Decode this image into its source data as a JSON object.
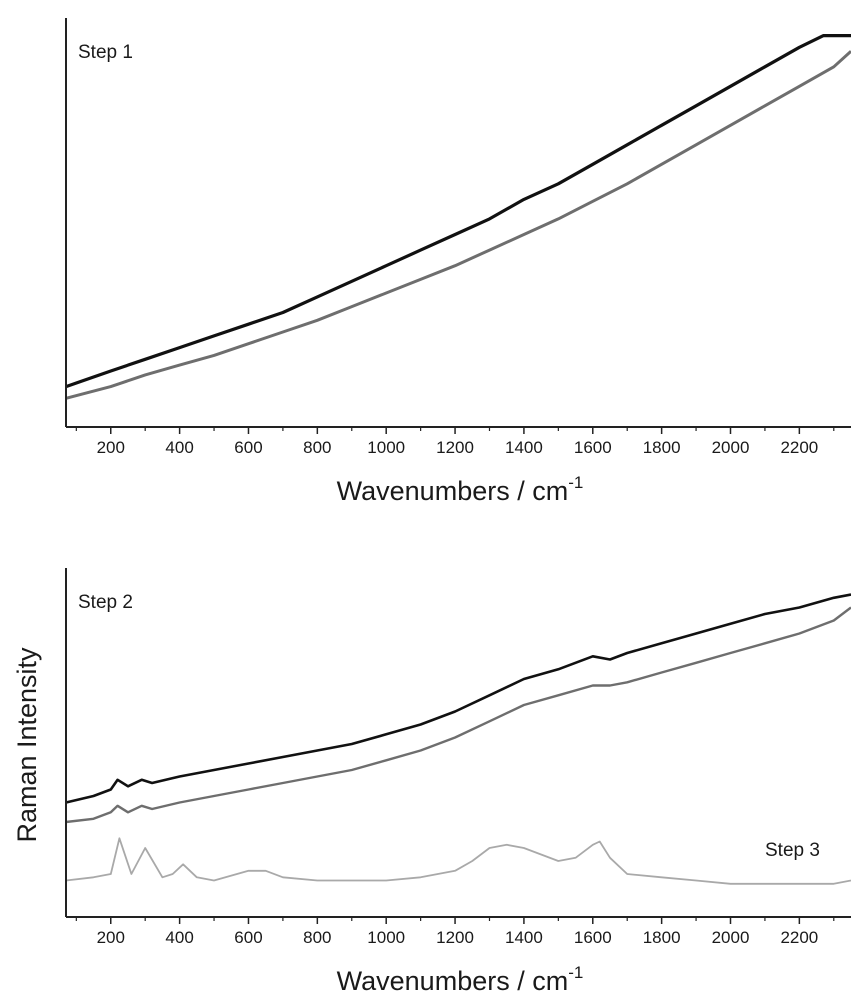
{
  "ylabel": "Raman Intensity",
  "chart_data": [
    {
      "type": "line",
      "annotation": "Step 1",
      "xlabel": "Wavenumbers / cm",
      "xlabel_superscript": "-1",
      "xlim": [
        70,
        2350
      ],
      "ylim": [
        0,
        100
      ],
      "xticks": [
        200,
        400,
        600,
        800,
        1000,
        1200,
        1400,
        1600,
        1800,
        2000,
        2200
      ],
      "grid": false,
      "series": [
        {
          "color": "#111111",
          "x": [
            70,
            200,
            300,
            400,
            500,
            600,
            700,
            800,
            900,
            1000,
            1100,
            1200,
            1300,
            1400,
            1500,
            1600,
            1700,
            1800,
            1900,
            2000,
            2100,
            2200,
            2270,
            2350
          ],
          "y": [
            6,
            10,
            13,
            16,
            19,
            22,
            25,
            29,
            33,
            37,
            41,
            45,
            49,
            54,
            58,
            63,
            68,
            73,
            78,
            83,
            88,
            93,
            96,
            96
          ]
        },
        {
          "color": "#6e6e6e",
          "x": [
            70,
            200,
            300,
            400,
            500,
            600,
            700,
            800,
            900,
            1000,
            1100,
            1200,
            1300,
            1400,
            1500,
            1600,
            1700,
            1800,
            1900,
            2000,
            2100,
            2200,
            2300,
            2350
          ],
          "y": [
            3,
            6,
            9,
            11.5,
            14,
            17,
            20,
            23,
            26.5,
            30,
            33.5,
            37,
            41,
            45,
            49,
            53.5,
            58,
            63,
            68,
            73,
            78,
            83,
            88,
            92
          ]
        }
      ]
    },
    {
      "type": "line",
      "annotations": [
        "Step 2",
        "Step 3"
      ],
      "xlabel": "Wavenumbers / cm",
      "xlabel_superscript": "-1",
      "xlim": [
        70,
        2350
      ],
      "ylim": [
        0,
        100
      ],
      "xticks": [
        200,
        400,
        600,
        800,
        1000,
        1200,
        1400,
        1600,
        1800,
        2000,
        2200
      ],
      "grid": false,
      "series": [
        {
          "color": "#111111",
          "x": [
            70,
            150,
            200,
            220,
            250,
            290,
            320,
            400,
            500,
            600,
            700,
            800,
            900,
            1000,
            1100,
            1200,
            1300,
            1400,
            1500,
            1600,
            1650,
            1700,
            1800,
            1900,
            2000,
            2100,
            2200,
            2300,
            2350
          ],
          "y": [
            30,
            32,
            34,
            37,
            35,
            37,
            36,
            38,
            40,
            42,
            44,
            46,
            48,
            51,
            54,
            58,
            63,
            68,
            71,
            75,
            74,
            76,
            79,
            82,
            85,
            88,
            90,
            93,
            94
          ]
        },
        {
          "color": "#6e6e6e",
          "x": [
            70,
            150,
            200,
            220,
            250,
            290,
            320,
            400,
            500,
            600,
            700,
            800,
            900,
            1000,
            1100,
            1200,
            1300,
            1400,
            1500,
            1600,
            1650,
            1700,
            1800,
            1900,
            2000,
            2100,
            2200,
            2300,
            2350
          ],
          "y": [
            24,
            25,
            27,
            29,
            27,
            29,
            28,
            30,
            32,
            34,
            36,
            38,
            40,
            43,
            46,
            50,
            55,
            60,
            63,
            66,
            66,
            67,
            70,
            73,
            76,
            79,
            82,
            86,
            90
          ]
        },
        {
          "color": "#a9a9a9",
          "x": [
            70,
            150,
            200,
            225,
            260,
            300,
            350,
            380,
            410,
            450,
            500,
            600,
            650,
            700,
            800,
            900,
            1000,
            1100,
            1200,
            1250,
            1300,
            1350,
            1400,
            1450,
            1500,
            1550,
            1600,
            1620,
            1650,
            1700,
            1800,
            1900,
            2000,
            2100,
            2200,
            2300,
            2350
          ],
          "y": [
            6,
            7,
            8,
            19,
            8,
            16,
            7,
            8,
            11,
            7,
            6,
            9,
            9,
            7,
            6,
            6,
            6,
            7,
            9,
            12,
            16,
            17,
            16,
            14,
            12,
            13,
            17,
            18,
            13,
            8,
            7,
            6,
            5,
            5,
            5,
            5,
            6
          ]
        }
      ]
    }
  ]
}
